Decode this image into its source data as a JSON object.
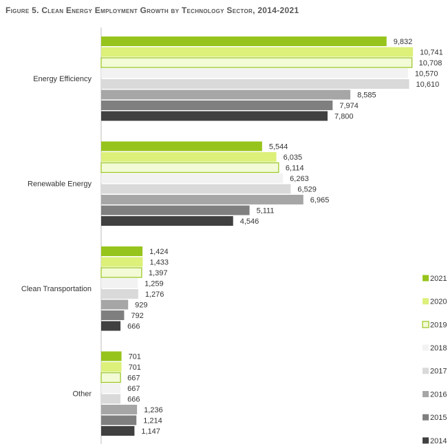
{
  "chart_data": {
    "type": "hbar",
    "title": "Figure 5. Clean Energy Employment Growth by Technology Sector, 2014-2021",
    "categories": [
      "Energy Efficiency",
      "Renewable Energy",
      "Clean Transportation",
      "Other"
    ],
    "xlim": [
      0,
      11000
    ],
    "legend": "right",
    "series": [
      {
        "name": "2021",
        "color": "#97c41c",
        "values": [
          9832,
          5544,
          1424,
          701
        ],
        "value_labels": [
          "9,832",
          "5,544",
          "1,424",
          "701"
        ]
      },
      {
        "name": "2020",
        "color": "#dcf07a",
        "values": [
          10741,
          6035,
          1433,
          701
        ],
        "value_labels": [
          "10,741",
          "6,035",
          "1,433",
          "701"
        ]
      },
      {
        "name": "2019",
        "color": "#f2fad6",
        "stroke": "#97c41c",
        "values": [
          10708,
          6114,
          1397,
          667
        ],
        "value_labels": [
          "10,708",
          "6,114",
          "1,397",
          "667"
        ]
      },
      {
        "name": "2018",
        "color": "#f2f2f2",
        "values": [
          10570,
          6263,
          1259,
          667
        ],
        "value_labels": [
          "10,570",
          "6,263",
          "1,259",
          "667"
        ]
      },
      {
        "name": "2017",
        "color": "#d9d9d9",
        "values": [
          10610,
          6529,
          1276,
          666
        ],
        "value_labels": [
          "10,610",
          "6,529",
          "1,276",
          "666"
        ]
      },
      {
        "name": "2016",
        "color": "#a6a6a6",
        "values": [
          8585,
          6965,
          929,
          1236
        ],
        "value_labels": [
          "8,585",
          "6,965",
          "929",
          "1,236"
        ]
      },
      {
        "name": "2015",
        "color": "#7f7f7f",
        "values": [
          7974,
          5111,
          792,
          1214
        ],
        "value_labels": [
          "7,974",
          "5,111",
          "792",
          "1,214"
        ]
      },
      {
        "name": "2014",
        "color": "#404040",
        "values": [
          7800,
          4546,
          666,
          1147
        ],
        "value_labels": [
          "7,800",
          "4,546",
          "666",
          "1,147"
        ]
      }
    ]
  }
}
